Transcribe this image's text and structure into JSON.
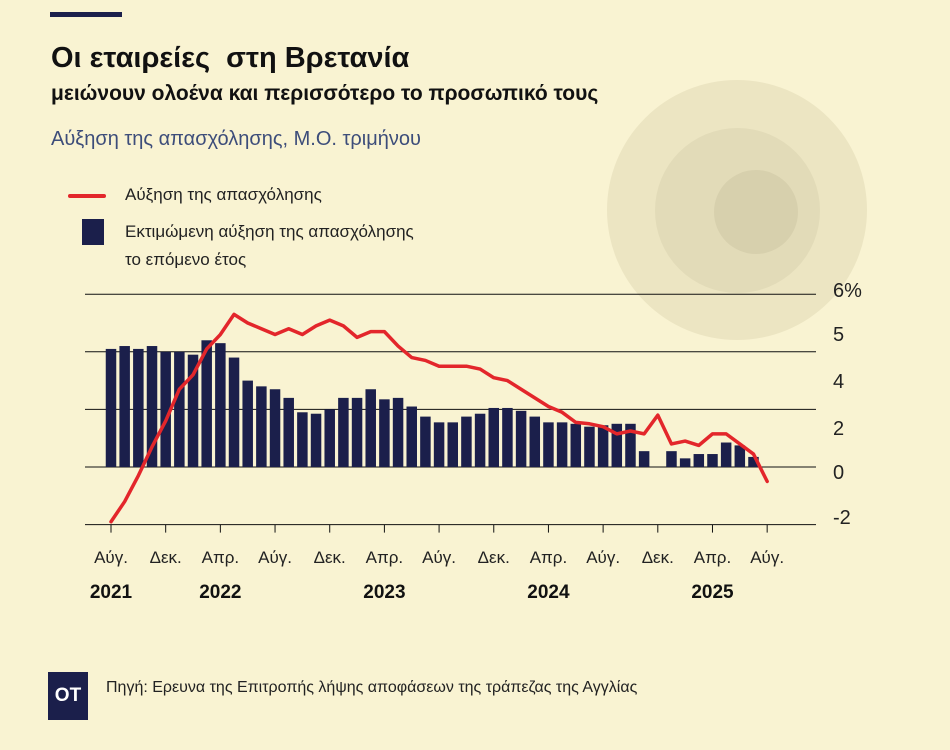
{
  "title": "Οι εταιρείες  στη Βρετανία",
  "subtitle": "μειώνουν ολοένα και περισσότερο το προσωπικό τους",
  "description": "Αύξηση της απασχόλησης, Μ.Ο. τριμήνου",
  "legend": {
    "line_label": "Αύξηση της απασχόλησης",
    "bar_label_line1": "Εκτιμώμενη αύξηση της απασχόλησης",
    "bar_label_line2": "το επόμενο έτος"
  },
  "source": "Πηγή: Ερευνα της Επιτροπής λήψης αποφάσεων της τράπεζας της Αγγλίας",
  "logo": "OT",
  "colors": {
    "background": "#f9f3d2",
    "bars": "#1b1f4b",
    "line": "#e3262b",
    "subtitle": "#3d4d7a"
  },
  "chart_data": {
    "type": "bar",
    "x_start": "2021-08",
    "ylim": [
      -2,
      6
    ],
    "yticks": [
      "6%",
      "5",
      "4",
      "2",
      "0",
      "-2"
    ],
    "grid": true,
    "legend_position": "top-left",
    "xtick_labels": [
      "Αύγ.",
      "Δεκ.",
      "Απρ.",
      "Αύγ.",
      "Δεκ.",
      "Απρ.",
      "Αύγ.",
      "Δεκ.",
      "Απρ.",
      "Αύγ.",
      "Δεκ.",
      "Απρ.",
      "Αύγ."
    ],
    "year_labels": [
      "2021",
      "2022",
      "2023",
      "2024",
      "2025"
    ],
    "series": [
      {
        "type": "bar",
        "name": "Εκτιμώμενη αύξηση της απασχόλησης το επόμενο έτος",
        "values": [
          4.1,
          4.2,
          4.1,
          4.2,
          4.0,
          4.0,
          3.9,
          4.4,
          4.3,
          3.8,
          3.0,
          2.8,
          2.7,
          2.4,
          1.9,
          1.85,
          2.0,
          2.4,
          2.4,
          2.7,
          2.35,
          2.4,
          2.1,
          1.75,
          1.55,
          1.55,
          1.75,
          1.85,
          2.05,
          2.05,
          1.95,
          1.75,
          1.55,
          1.55,
          1.5,
          1.4,
          1.45,
          1.5,
          1.5,
          0.55,
          null,
          0.55,
          0.3,
          0.45,
          0.45,
          0.85,
          0.75,
          0.35
        ]
      },
      {
        "type": "line",
        "name": "Αύξηση της απασχόλησης",
        "values": [
          -1.9,
          -1.2,
          -0.3,
          0.7,
          1.6,
          2.7,
          3.2,
          4.1,
          4.6,
          5.3,
          5.0,
          4.8,
          4.6,
          4.8,
          4.6,
          4.9,
          5.1,
          4.9,
          4.5,
          4.7,
          4.7,
          4.2,
          3.8,
          3.7,
          3.5,
          3.5,
          3.5,
          3.4,
          3.1,
          3.0,
          2.7,
          2.4,
          2.1,
          1.9,
          1.55,
          1.5,
          1.4,
          1.15,
          1.25,
          1.15,
          1.8,
          0.8,
          0.9,
          0.75,
          1.15,
          1.15,
          0.8,
          0.45,
          -0.5
        ]
      }
    ]
  }
}
